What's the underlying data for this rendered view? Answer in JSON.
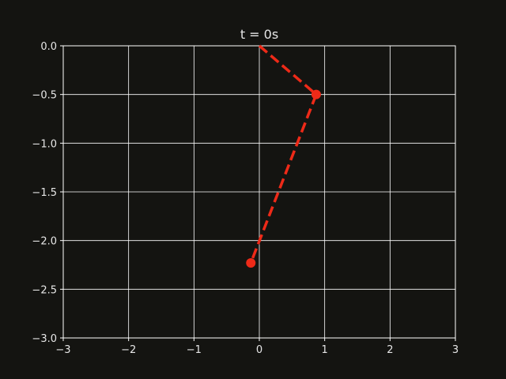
{
  "chart_data": {
    "type": "line",
    "title": "t = 0s",
    "xlabel": "",
    "ylabel": "",
    "xlim": [
      -3,
      3
    ],
    "ylim": [
      -3.0,
      0.0
    ],
    "x_ticks": [
      {
        "value": -3,
        "label": "−3"
      },
      {
        "value": -2,
        "label": "−2"
      },
      {
        "value": -1,
        "label": "−1"
      },
      {
        "value": 0,
        "label": "0"
      },
      {
        "value": 1,
        "label": "1"
      },
      {
        "value": 2,
        "label": "2"
      },
      {
        "value": 3,
        "label": "3"
      }
    ],
    "y_ticks": [
      {
        "value": 0.0,
        "label": "0.0"
      },
      {
        "value": -0.5,
        "label": "−0.5"
      },
      {
        "value": -1.0,
        "label": "−1.0"
      },
      {
        "value": -1.5,
        "label": "−1.5"
      },
      {
        "value": -2.0,
        "label": "−2.0"
      },
      {
        "value": -2.5,
        "label": "−2.5"
      },
      {
        "value": -3.0,
        "label": "−3.0"
      }
    ],
    "grid": true,
    "series": [
      {
        "x": [
          0.0,
          0.87,
          -0.13
        ],
        "y": [
          0.0,
          -0.5,
          -2.23
        ],
        "line_style": "dashed",
        "markers": [
          false,
          true,
          true
        ]
      }
    ],
    "colors": {
      "background": "#141411",
      "axes": "#ffffff",
      "grid": "#ffffff",
      "text": "#e6e6e6",
      "series": "#ee2a18"
    }
  }
}
